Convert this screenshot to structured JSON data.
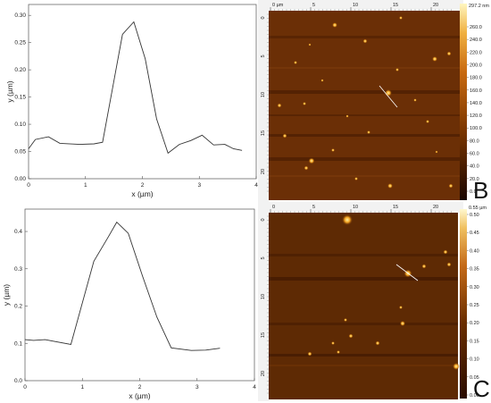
{
  "profiles": [
    {
      "id": "top",
      "ylabel": "y (µm)",
      "xlabel": "x (µm)",
      "x_ticks": [
        "0",
        "1",
        "2",
        "3",
        "4"
      ],
      "y_ticks": [
        "0.00",
        "0.05",
        "0.10",
        "0.15",
        "0.20",
        "0.25",
        "0.30"
      ],
      "xlim": [
        0,
        4
      ],
      "ylim": [
        0,
        0.32
      ],
      "points": [
        [
          0,
          0.055
        ],
        [
          0.12,
          0.072
        ],
        [
          0.35,
          0.077
        ],
        [
          0.55,
          0.065
        ],
        [
          0.9,
          0.063
        ],
        [
          1.15,
          0.064
        ],
        [
          1.3,
          0.067
        ],
        [
          1.65,
          0.265
        ],
        [
          1.85,
          0.288
        ],
        [
          2.05,
          0.22
        ],
        [
          2.25,
          0.11
        ],
        [
          2.45,
          0.047
        ],
        [
          2.65,
          0.063
        ],
        [
          2.85,
          0.07
        ],
        [
          3.05,
          0.08
        ],
        [
          3.25,
          0.062
        ],
        [
          3.45,
          0.063
        ],
        [
          3.6,
          0.055
        ],
        [
          3.75,
          0.052
        ]
      ]
    },
    {
      "id": "bottom",
      "ylabel": "y (µm)",
      "xlabel": "x (µm)",
      "x_ticks": [
        "0",
        "1",
        "2",
        "3",
        "4"
      ],
      "y_ticks": [
        "0.0",
        "0.1",
        "0.2",
        "0.3",
        "0.4"
      ],
      "xlim": [
        0,
        4
      ],
      "ylim": [
        0,
        0.46
      ],
      "points": [
        [
          0,
          0.11
        ],
        [
          0.15,
          0.108
        ],
        [
          0.35,
          0.11
        ],
        [
          0.8,
          0.097
        ],
        [
          1.2,
          0.32
        ],
        [
          1.45,
          0.385
        ],
        [
          1.6,
          0.425
        ],
        [
          1.8,
          0.395
        ],
        [
          2.05,
          0.28
        ],
        [
          2.3,
          0.17
        ],
        [
          2.55,
          0.088
        ],
        [
          2.9,
          0.081
        ],
        [
          3.15,
          0.082
        ],
        [
          3.4,
          0.087
        ]
      ]
    }
  ],
  "scans": [
    {
      "letter": "B",
      "ruler_top": [
        "0 µm",
        "5",
        "10",
        "15",
        "20"
      ],
      "ruler_left": [
        "0",
        "5",
        "10",
        "15",
        "20"
      ],
      "colorbar_top": "297.2 nm",
      "colorbar_ticks": [
        "260.0",
        "240.0",
        "220.0",
        "200.0",
        "180.0",
        "160.0",
        "140.0",
        "120.0",
        "100.0",
        "80.0",
        "60.0",
        "40.0",
        "20.0",
        "0.0"
      ]
    },
    {
      "letter": "C",
      "ruler_top": [
        "0",
        "5",
        "10",
        "15",
        "20"
      ],
      "ruler_left": [
        "0",
        "5",
        "10",
        "15",
        "20"
      ],
      "colorbar_top": "0.55 µm",
      "colorbar_ticks": [
        "0.50",
        "0.45",
        "0.40",
        "0.35",
        "0.30",
        "0.25",
        "0.20",
        "0.15",
        "0.10",
        "0.05",
        "0.00"
      ]
    }
  ]
}
